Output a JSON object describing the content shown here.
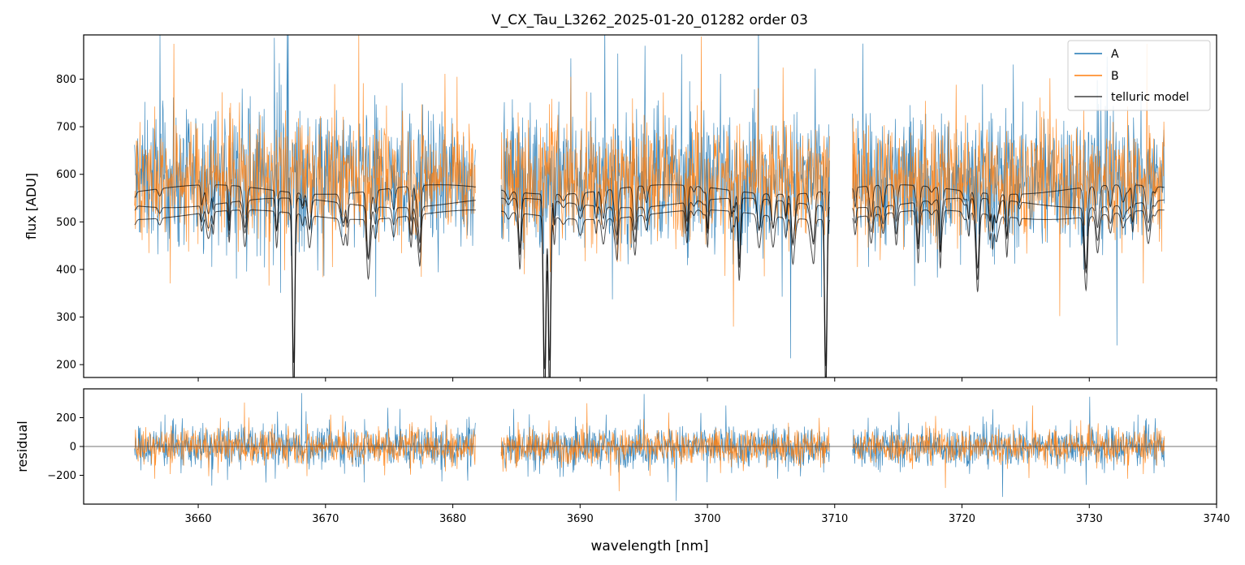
{
  "chart_data": {
    "type": "line",
    "title": "V_CX_Tau_L3262_2025-01-20_01282  order 03",
    "xlabel": "wavelength [nm]",
    "xlim": [
      3651,
      3740
    ],
    "x_ticks": [
      "3660",
      "3670",
      "3680",
      "3690",
      "3700",
      "3710",
      "3720",
      "3730",
      "3740"
    ],
    "x_tick_values": [
      3660,
      3670,
      3680,
      3690,
      3700,
      3710,
      3720,
      3730,
      3740
    ],
    "segments_nm": [
      [
        3655.0,
        3681.8
      ],
      [
        3683.8,
        3709.6
      ],
      [
        3711.4,
        3735.9
      ]
    ],
    "colors": {
      "A": "#1f77b4",
      "B": "#ff7f0e",
      "model": "#000000"
    },
    "top_panel": {
      "ylabel": "flux [ADU]",
      "ylim": [
        173,
        893
      ],
      "y_ticks": [
        "200",
        "300",
        "400",
        "500",
        "600",
        "700",
        "800"
      ],
      "y_tick_values": [
        200,
        300,
        400,
        500,
        600,
        700,
        800
      ],
      "series": [
        {
          "name": "A",
          "mean": 590,
          "noise_amplitude": 170
        },
        {
          "name": "B",
          "mean": 590,
          "noise_amplitude": 140
        }
      ],
      "telluric_model": {
        "name": "telluric model",
        "continuum_levels": [
          540,
          515,
          560
        ],
        "strong_absorption_nm": [
          3667.5,
          3687.2,
          3687.6,
          3709.3
        ]
      },
      "legend": {
        "location": "top-right",
        "entries": [
          "A",
          "B",
          "telluric model"
        ]
      }
    },
    "bottom_panel": {
      "ylabel": "residual",
      "ylim": [
        -400,
        400
      ],
      "y_ticks": [
        "200",
        "0",
        "−200"
      ],
      "y_tick_values": [
        200,
        0,
        -200
      ],
      "zero_line": 0,
      "series": [
        {
          "name": "A",
          "mean": 0,
          "noise_amplitude": 170
        },
        {
          "name": "B",
          "mean": 0,
          "noise_amplitude": 140
        }
      ]
    }
  }
}
